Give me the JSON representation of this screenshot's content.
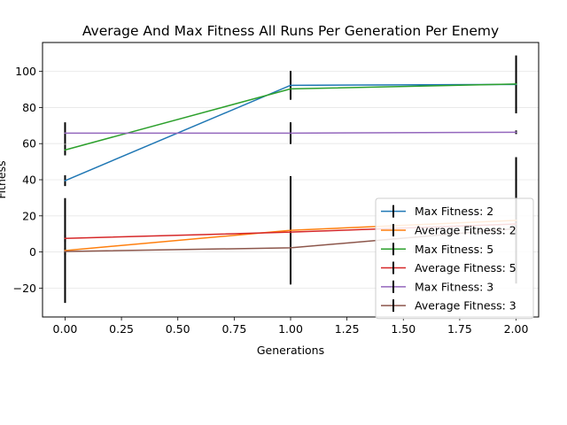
{
  "chart_data": {
    "type": "line",
    "title": "Average And Max Fitness All Runs Per Generation Per Enemy",
    "xlabel": "Generations",
    "ylabel": "Fitness",
    "xlim": [
      -0.1,
      2.1
    ],
    "ylim": [
      -36,
      116
    ],
    "xticks": [
      0.0,
      0.25,
      0.5,
      0.75,
      1.0,
      1.25,
      1.5,
      1.75,
      2.0
    ],
    "xtick_labels": [
      "0.00",
      "0.25",
      "0.50",
      "0.75",
      "1.00",
      "1.25",
      "1.50",
      "1.75",
      "2.00"
    ],
    "yticks": [
      -20,
      0,
      20,
      40,
      60,
      80,
      100
    ],
    "ytick_labels": [
      "−20",
      "0",
      "20",
      "40",
      "60",
      "80",
      "100"
    ],
    "grid": "horizontal",
    "legend_position": "lower-right",
    "error_bars": true,
    "x": [
      0,
      1,
      2
    ],
    "series": [
      {
        "name": "Max Fitness: 2",
        "color": "#1f77b4",
        "values": [
          39.5,
          92.3,
          92.8
        ],
        "errors": [
          3,
          8,
          16
        ]
      },
      {
        "name": "Average Fitness: 2",
        "color": "#ff7f0e",
        "values": [
          0.8,
          12.0,
          17.5
        ],
        "errors": [
          29,
          30,
          35
        ]
      },
      {
        "name": "Max Fitness: 5",
        "color": "#2ca02c",
        "values": [
          56.5,
          90.3,
          93.0
        ],
        "errors": [
          3,
          1,
          1
        ]
      },
      {
        "name": "Average Fitness: 5",
        "color": "#d62728",
        "values": [
          7.5,
          11.0,
          15.5
        ],
        "errors": [
          2,
          2,
          2
        ]
      },
      {
        "name": "Max Fitness: 3",
        "color": "#9467bd",
        "values": [
          65.8,
          65.8,
          66.3
        ],
        "errors": [
          6,
          6,
          1
        ]
      },
      {
        "name": "Average Fitness: 3",
        "color": "#8c564b",
        "values": [
          0.3,
          2.3,
          13.0
        ],
        "errors": [
          2,
          2,
          2
        ]
      }
    ]
  }
}
